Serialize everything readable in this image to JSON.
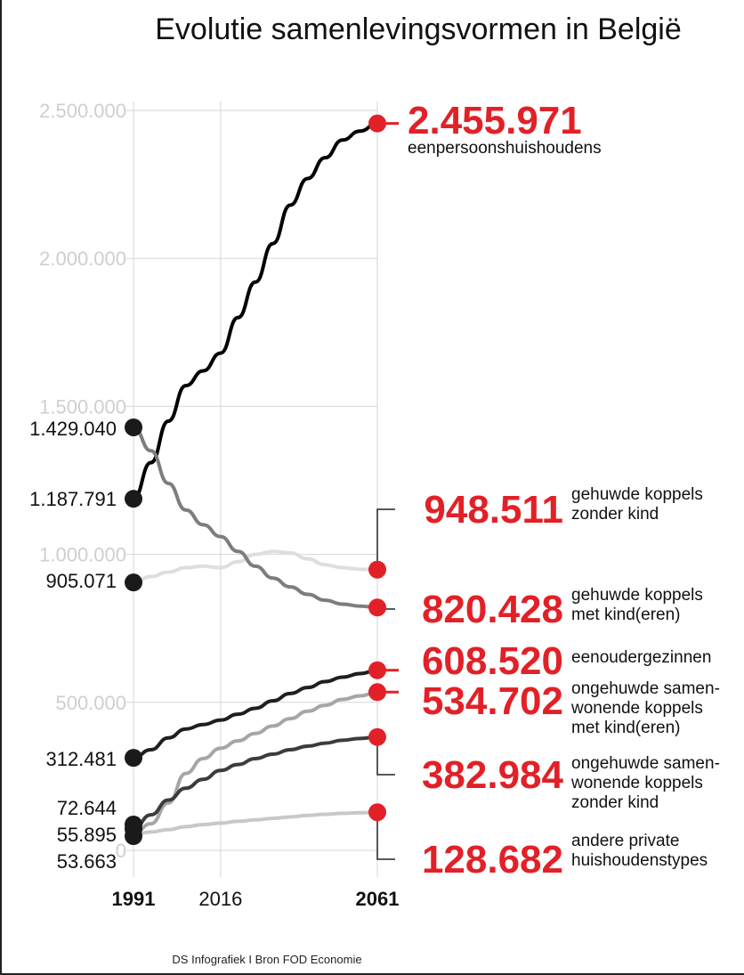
{
  "title": "Evolutie samenlevingsvormen in België",
  "source": "DS Infografiek I Bron FOD Economie",
  "colors": {
    "accent": "#e12127",
    "grid": "#d6d6d6",
    "tick": "#cfcfcf",
    "text": "#111111"
  },
  "chart_data": {
    "type": "line",
    "title": "Evolutie samenlevingsvormen in België",
    "xlabel": "",
    "ylabel": "",
    "x": [
      1991,
      2016,
      2061
    ],
    "x_ticks": [
      "1991",
      "2016",
      "2061"
    ],
    "ylim": [
      0,
      2500000
    ],
    "y_ticks": [
      "0",
      "500.000",
      "1.000.000",
      "1.500.000",
      "2.000.000",
      "2.500.000"
    ],
    "y_tick_values": [
      0,
      500000,
      1000000,
      1500000,
      2000000,
      2500000
    ],
    "grid": true,
    "series": [
      {
        "name": "eenpersoonshuishoudens",
        "color": "#000000",
        "start_label": "1.187.791",
        "end_label": "2.455.971",
        "points": [
          [
            1991,
            1187791
          ],
          [
            1996,
            1310000
          ],
          [
            2001,
            1450000
          ],
          [
            2006,
            1570000
          ],
          [
            2011,
            1620000
          ],
          [
            2016,
            1680000
          ],
          [
            2021,
            1800000
          ],
          [
            2026,
            1920000
          ],
          [
            2031,
            2050000
          ],
          [
            2036,
            2180000
          ],
          [
            2041,
            2270000
          ],
          [
            2046,
            2340000
          ],
          [
            2051,
            2400000
          ],
          [
            2056,
            2430000
          ],
          [
            2061,
            2455971
          ]
        ]
      },
      {
        "name": "gehuwde koppels zonder kind",
        "color": "#dedede",
        "start_label": "905.071",
        "end_label": "948.511",
        "points": [
          [
            1991,
            905071
          ],
          [
            1996,
            925000
          ],
          [
            2001,
            940000
          ],
          [
            2006,
            955000
          ],
          [
            2011,
            960000
          ],
          [
            2016,
            955000
          ],
          [
            2021,
            975000
          ],
          [
            2026,
            1000000
          ],
          [
            2031,
            1010000
          ],
          [
            2036,
            1005000
          ],
          [
            2041,
            985000
          ],
          [
            2046,
            965000
          ],
          [
            2051,
            955000
          ],
          [
            2056,
            950000
          ],
          [
            2061,
            948511
          ]
        ]
      },
      {
        "name": "gehuwde koppels met kind(eren)",
        "color": "#7d7d7d",
        "start_label": "1.429.040",
        "end_label": "820.428",
        "points": [
          [
            1991,
            1429040
          ],
          [
            1996,
            1350000
          ],
          [
            2001,
            1240000
          ],
          [
            2006,
            1150000
          ],
          [
            2011,
            1100000
          ],
          [
            2016,
            1060000
          ],
          [
            2021,
            1010000
          ],
          [
            2026,
            960000
          ],
          [
            2031,
            920000
          ],
          [
            2036,
            890000
          ],
          [
            2041,
            865000
          ],
          [
            2046,
            845000
          ],
          [
            2051,
            832000
          ],
          [
            2056,
            825000
          ],
          [
            2061,
            820428
          ]
        ]
      },
      {
        "name": "eenoudergezinnen",
        "color": "#1f1f1f",
        "start_label": "312.481",
        "end_label": "608.520",
        "points": [
          [
            1991,
            312481
          ],
          [
            1996,
            340000
          ],
          [
            2001,
            380000
          ],
          [
            2006,
            410000
          ],
          [
            2011,
            425000
          ],
          [
            2016,
            440000
          ],
          [
            2021,
            460000
          ],
          [
            2026,
            480000
          ],
          [
            2031,
            505000
          ],
          [
            2036,
            530000
          ],
          [
            2041,
            550000
          ],
          [
            2046,
            570000
          ],
          [
            2051,
            585000
          ],
          [
            2056,
            597000
          ],
          [
            2061,
            608520
          ]
        ]
      },
      {
        "name": "ongehuwde samenwonende koppels met kind(eren)",
        "color": "#a6a6a6",
        "start_label": "55.895",
        "end_label": "534.702",
        "points": [
          [
            1991,
            55895
          ],
          [
            1996,
            90000
          ],
          [
            2001,
            160000
          ],
          [
            2006,
            260000
          ],
          [
            2011,
            310000
          ],
          [
            2016,
            345000
          ],
          [
            2021,
            370000
          ],
          [
            2026,
            395000
          ],
          [
            2031,
            420000
          ],
          [
            2036,
            445000
          ],
          [
            2041,
            470000
          ],
          [
            2046,
            490000
          ],
          [
            2051,
            510000
          ],
          [
            2056,
            522000
          ],
          [
            2061,
            534702
          ]
        ]
      },
      {
        "name": "ongehuwde samenwonende koppels zonder kind",
        "color": "#3c3c3c",
        "start_label": "72.644",
        "end_label": "382.984",
        "points": [
          [
            1991,
            72644
          ],
          [
            1996,
            120000
          ],
          [
            2001,
            170000
          ],
          [
            2006,
            210000
          ],
          [
            2011,
            240000
          ],
          [
            2016,
            270000
          ],
          [
            2021,
            290000
          ],
          [
            2026,
            310000
          ],
          [
            2031,
            325000
          ],
          [
            2036,
            340000
          ],
          [
            2041,
            352000
          ],
          [
            2046,
            362000
          ],
          [
            2051,
            372000
          ],
          [
            2056,
            378000
          ],
          [
            2061,
            382984
          ]
        ]
      },
      {
        "name": "andere private huishoudenstypes",
        "color": "#c8c8c8",
        "start_label": "53.663",
        "end_label": "128.682",
        "points": [
          [
            1991,
            53663
          ],
          [
            1996,
            62000
          ],
          [
            2001,
            70000
          ],
          [
            2006,
            80000
          ],
          [
            2011,
            87000
          ],
          [
            2016,
            92000
          ],
          [
            2021,
            98000
          ],
          [
            2026,
            103000
          ],
          [
            2031,
            108000
          ],
          [
            2036,
            113000
          ],
          [
            2041,
            118000
          ],
          [
            2046,
            122000
          ],
          [
            2051,
            125000
          ],
          [
            2056,
            127000
          ],
          [
            2061,
            128682
          ]
        ]
      }
    ],
    "end_category_labels": [
      [
        "eenpersoonshuishoudens"
      ],
      [
        "gehuwde koppels",
        "zonder kind"
      ],
      [
        "gehuwde koppels",
        "met kind(eren)"
      ],
      [
        "eenoudergezinnen"
      ],
      [
        "ongehuwde samen-",
        "wonende koppels",
        "met kind(eren)"
      ],
      [
        "ongehuwde samen-",
        "wonende koppels",
        "zonder kind"
      ],
      [
        "andere private",
        "huishoudenstypes"
      ]
    ]
  }
}
